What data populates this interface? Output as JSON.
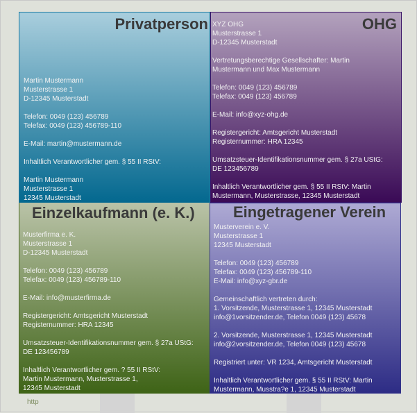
{
  "cards": [
    {
      "title": "Privatperson",
      "text": "Martin Mustermann\nMusterstrasse 1\nD-12345 Musterstadt\n\nTelefon: 0049 (123) 456789\nTelefax: 0049 (123) 456789-110\n\nE-Mail: martin@mustermann.de\n\nInhaltlich Verantwortlicher gem. § 55 II RStV:\n\nMartin Mustermann\nMusterstrasse 1\n12345 Musterstadt",
      "color_top": "#a9cedd",
      "color_bottom": "#03688f"
    },
    {
      "title": "OHG",
      "text": "XYZ OHG\nMusterstrasse 1\nD-12345 Musterstadt\n\nVertretungsberechtige Gesellschafter: Martin\nMustermann und Max Mustermann\n\nTelefon: 0049 (123) 456789\nTelefax: 0049 (123) 456789\n\nE-Mail: info@xyz-ohg.de\n\nRegistergericht: Amtsgericht Musterstadt\nRegisternummer: HRA 12345\n\nUmsatzsteuer-Identifikationsnummer gem. § 27a UStG:\nDE 123456789\n\nInhaltlich Verantwortlicher gem. § 55 II RStV: Martin\nMustermann, Musterstrasse, 12345 Musterstadt",
      "color_top": "#b3a2bd",
      "color_bottom": "#3a0a56"
    },
    {
      "title": "Einzelkaufmann (e. K.)",
      "text": "Musterfirma e. K.\nMusterstrasse 1\nD-12345 Musterstadt\n\nTelefon: 0049 (123) 456789\nTelefax: 0049 (123) 456789-110\n\nE-Mail: info@musterfirma.de\n\nRegistergericht: Amtsgericht Musterstadt\nRegisternummer: HRA 12345\n\nUmsatzsteuer-Identifikationsnummer gem. § 27a UStG:\nDE 123456789\n\nInhaltlich Verantwortlicher gem. ? 55 II RStV:\nMartin Mustermann, Musterstrasse 1,\n12345 Musterstadt",
      "overlay": "http",
      "color_top": "#bac3a8",
      "color_bottom": "#3e6316"
    },
    {
      "title": "Eingetragener Verein",
      "text": "Musterverein e. V.\nMusterstrasse 1\n12345 Musterstadt\n\nTelefon: 0049 (123) 456789\nTelefax: 0049 (123) 456789-110\nE-Mail: info@xyz-gbr.de\n\nGemeinschaftlich vertreten durch:\n1. Vorsitzende, Musterstrasse 1, 12345 Musterstadt\ninfo@1vorsitzender.de, Telefon 0049 (123) 45678\n\n2. Vorsitzende, Musterstrasse 1, 12345 Musterstadt\ninfo@2vorsitzender.de, Telefon 0049 (123) 45678\n\nRegistriert unter: VR 1234, Amtsgericht Musterstadt\n\nInhaltlich Verantwortlicher gem. § 55 II RStV: Martin\nMustermann, Musstra?e 1, 12345 Musterstadt",
      "color_top": "#aeaad4",
      "color_bottom": "#2d2c85"
    }
  ]
}
